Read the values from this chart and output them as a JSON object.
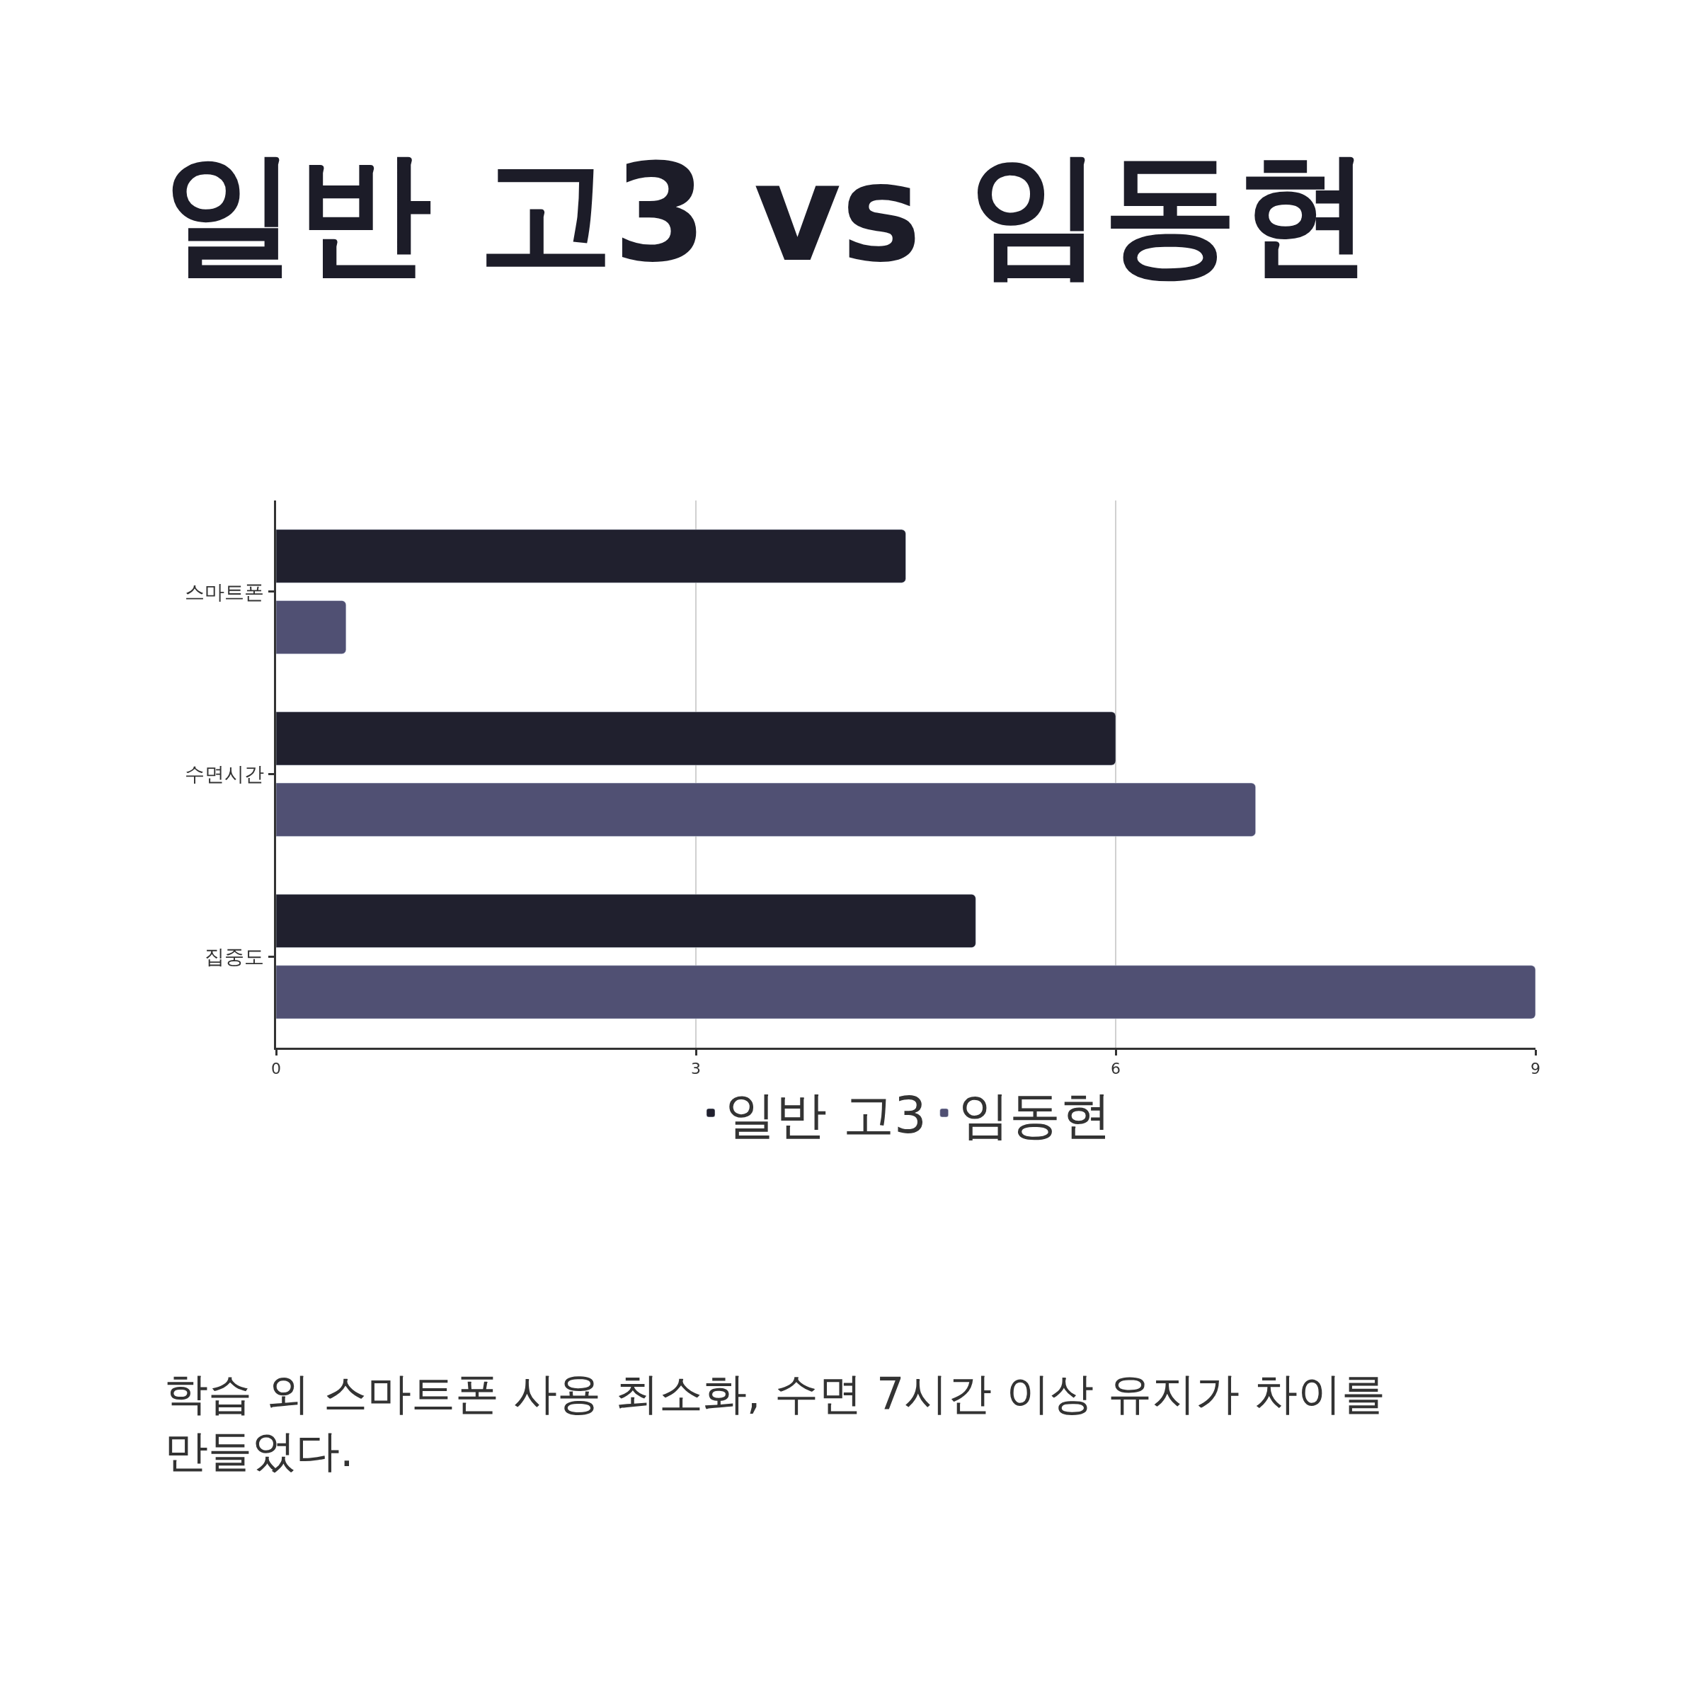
{
  "chart_data": {
    "type": "bar",
    "orientation": "horizontal",
    "title": "일반 고3 vs 임동현",
    "categories": [
      "스마트폰",
      "수면시간",
      "집중도"
    ],
    "series": [
      {
        "name": "일반 고3",
        "color": "#20202e",
        "values": [
          4.5,
          6,
          5
        ]
      },
      {
        "name": "임동현",
        "color": "#505073",
        "values": [
          0.5,
          7,
          9
        ]
      }
    ],
    "xlim": [
      0,
      9
    ],
    "xticks": [
      0,
      3,
      6,
      9
    ],
    "grid": "x",
    "legend": "bottom",
    "annotations": [
      "학습 외 스마트폰 사용 최소화, 수면 7시간 이상 유지가 차이를 만들었다."
    ]
  }
}
